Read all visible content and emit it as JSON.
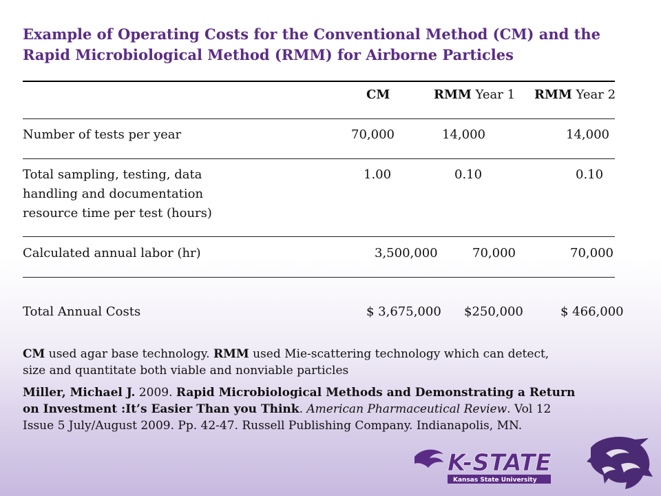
{
  "title": {
    "line1": "Example of Operating Costs for the Conventional Method (CM) and the",
    "line2": "Rapid Microbiological Method (RMM) for Airborne Particles"
  },
  "table": {
    "headers": {
      "cm": "CM",
      "rmm1_bold": "RMM",
      "rmm1_rest": " Year 1",
      "rmm2_bold": "RMM",
      "rmm2_rest": " Year 2"
    },
    "rows": [
      {
        "label": [
          "Number of tests per year"
        ],
        "cm": "70,000",
        "rmm1": "14,000",
        "rmm2": "14,000"
      },
      {
        "label": [
          "Total sampling, testing, data",
          "handling and documentation",
          "resource time per test (hours)"
        ],
        "cm": "1.00",
        "rmm1": "0.10",
        "rmm2": "0.10"
      },
      {
        "label": [
          "Calculated annual labor (hr)"
        ],
        "cm": "3,500,000",
        "rmm1": "70,000",
        "rmm2": "70,000"
      },
      {
        "label": [
          "Total Annual Costs"
        ],
        "cm": "$ 3,675,000",
        "rmm1": "$250,000",
        "rmm2": "$ 466,000"
      }
    ]
  },
  "footnote": {
    "cm_bold": "CM",
    "cm_text": " used agar base technology. ",
    "rmm_bold": "RMM",
    "rmm_text": " used Mie-scattering technology which can detect,",
    "line2": "size and quantitate both viable and nonviable particles"
  },
  "citation": {
    "author": "Miller, Michael J.",
    "year": " 2009. ",
    "title_l1": "Rapid Microbiological Methods and Demonstrating a Return",
    "title_l2": "on Investment :It’s Easier Than you Think",
    "sep": ". ",
    "journal": "American Pharmaceutical Review",
    "vol": ". Vol 12",
    "line3": "Issue 5 July/August 2009. Pp. 42-47. Russell Publishing Company. Indianapolis, MN."
  },
  "branding": {
    "logo_text": "K-STATE",
    "logo_sub": "Kansas State University",
    "purple": "#5b2c86"
  }
}
